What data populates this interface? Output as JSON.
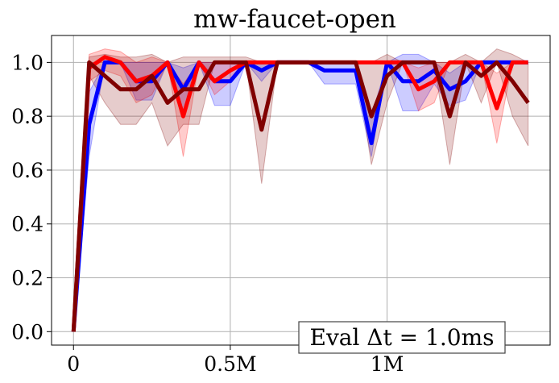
{
  "chart_data": {
    "type": "line",
    "title": "mw-faucet-open",
    "xlabel": "",
    "ylabel": "",
    "xlim": [
      -70000,
      1520000
    ],
    "ylim": [
      -0.05,
      1.1
    ],
    "x_ticks": [
      {
        "value": 0,
        "label": "0"
      },
      {
        "value": 500000,
        "label": "0.5M"
      },
      {
        "value": 1000000,
        "label": "1M"
      }
    ],
    "y_ticks": [
      {
        "value": 0.0,
        "label": "0.0"
      },
      {
        "value": 0.2,
        "label": "0.2"
      },
      {
        "value": 0.4,
        "label": "0.4"
      },
      {
        "value": 0.6,
        "label": "0.6"
      },
      {
        "value": 0.8,
        "label": "0.8"
      },
      {
        "value": 1.0,
        "label": "1.0"
      }
    ],
    "grid": true,
    "annotation": "Eval Δt = 1.0ms",
    "annotation_position": "bottom-right",
    "x": [
      0,
      50000,
      100000,
      150000,
      200000,
      250000,
      300000,
      350000,
      400000,
      450000,
      500000,
      550000,
      600000,
      650000,
      700000,
      750000,
      800000,
      850000,
      900000,
      950000,
      1000000,
      1050000,
      1100000,
      1150000,
      1200000,
      1250000,
      1300000,
      1350000,
      1400000,
      1450000
    ],
    "series": [
      {
        "color": "#0000ff",
        "values": [
          0,
          0.77,
          1.0,
          1.0,
          0.93,
          0.93,
          1.0,
          0.9,
          1.0,
          0.93,
          0.93,
          1.0,
          0.97,
          1.0,
          1.0,
          1.0,
          0.97,
          0.97,
          0.97,
          0.7,
          1.0,
          0.93,
          0.93,
          0.97,
          0.9,
          0.93,
          1.0,
          1.0,
          1.0,
          1.0
        ],
        "lower": [
          0,
          0.65,
          1.0,
          1.0,
          0.86,
          0.86,
          1.0,
          0.82,
          1.0,
          0.84,
          0.84,
          1.0,
          0.93,
          1.0,
          1.0,
          1.0,
          0.92,
          0.92,
          0.92,
          0.65,
          1.0,
          0.82,
          0.82,
          0.92,
          0.84,
          0.86,
          1.0,
          1.0,
          1.0,
          1.0
        ],
        "upper": [
          0,
          0.89,
          1.0,
          1.0,
          1.0,
          1.0,
          1.0,
          0.98,
          1.0,
          1.0,
          1.0,
          1.0,
          1.0,
          1.0,
          1.0,
          1.0,
          1.0,
          1.0,
          1.0,
          0.8,
          1.0,
          1.03,
          1.03,
          1.0,
          0.96,
          1.0,
          1.0,
          1.0,
          1.0,
          1.0
        ]
      },
      {
        "color": "#ff0000",
        "values": [
          0,
          0.98,
          1.02,
          1.0,
          0.93,
          0.95,
          1.0,
          0.8,
          1.0,
          0.93,
          0.97,
          1.0,
          1.0,
          1.0,
          1.0,
          1.0,
          1.0,
          1.0,
          1.0,
          1.0,
          1.0,
          1.0,
          0.9,
          0.93,
          1.0,
          1.0,
          1.0,
          0.83,
          1.0,
          1.0
        ],
        "lower": [
          0,
          0.93,
          0.97,
          0.95,
          0.85,
          0.88,
          1.0,
          0.65,
          1.0,
          0.88,
          0.93,
          1.0,
          1.0,
          1.0,
          1.0,
          1.0,
          1.0,
          1.0,
          1.0,
          1.0,
          1.0,
          1.0,
          0.82,
          0.85,
          1.0,
          1.0,
          1.0,
          0.7,
          1.0,
          1.0
        ],
        "upper": [
          0,
          1.03,
          1.05,
          1.04,
          1.0,
          1.02,
          1.0,
          0.92,
          1.0,
          1.0,
          1.0,
          1.0,
          1.0,
          1.0,
          1.0,
          1.0,
          1.0,
          1.0,
          1.0,
          1.0,
          1.0,
          1.0,
          0.98,
          1.0,
          1.0,
          1.0,
          1.0,
          0.96,
          1.0,
          1.0
        ]
      },
      {
        "color": "#800000",
        "values": [
          0,
          1.0,
          0.95,
          0.9,
          0.9,
          0.95,
          0.85,
          0.9,
          0.9,
          1.0,
          1.0,
          1.0,
          0.75,
          1.0,
          1.0,
          1.0,
          1.0,
          1.0,
          1.0,
          0.8,
          0.95,
          1.0,
          1.0,
          1.0,
          0.8,
          1.0,
          0.95,
          1.0,
          0.93,
          0.85
        ],
        "lower": [
          0,
          0.95,
          0.85,
          0.77,
          0.77,
          0.85,
          0.69,
          0.77,
          0.77,
          1.0,
          1.0,
          1.0,
          0.55,
          1.0,
          1.0,
          1.0,
          1.0,
          1.0,
          1.0,
          0.62,
          0.85,
          1.0,
          1.0,
          1.0,
          0.62,
          1.0,
          0.85,
          1.0,
          0.8,
          0.69
        ],
        "upper": [
          0,
          1.02,
          1.03,
          1.02,
          1.02,
          1.03,
          1.0,
          1.02,
          1.02,
          1.02,
          1.02,
          1.02,
          1.0,
          1.0,
          1.0,
          1.0,
          1.0,
          1.0,
          1.0,
          1.0,
          1.03,
          1.0,
          1.0,
          1.0,
          1.0,
          1.03,
          1.0,
          1.05,
          1.03,
          1.0
        ]
      }
    ]
  }
}
